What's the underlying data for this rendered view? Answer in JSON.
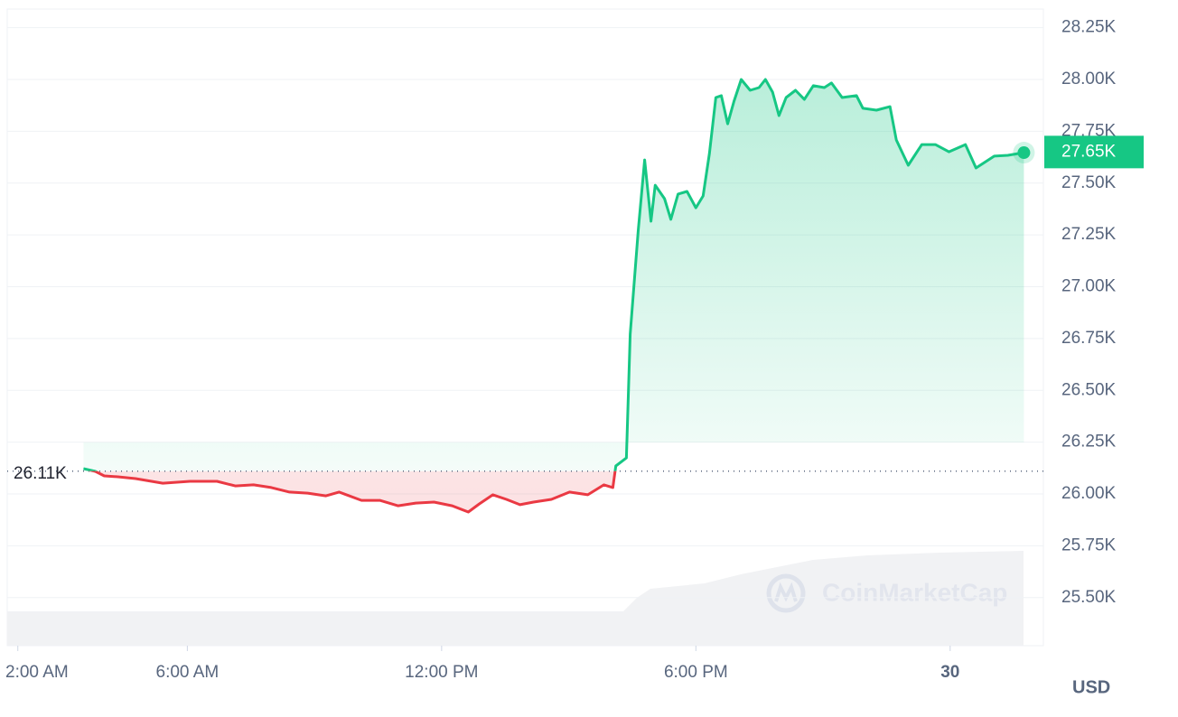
{
  "chart_data": {
    "type": "line",
    "series": [
      {
        "color": "#16c784",
        "down_color": "#ea3943",
        "x": [
          3.55,
          3.83,
          4.04,
          4.36,
          4.78,
          5.42,
          6.06,
          6.7,
          7.13,
          7.56,
          7.98,
          8.41,
          8.84,
          9.27,
          9.58,
          10.11,
          10.54,
          10.97,
          11.39,
          11.82,
          12.25,
          12.63,
          12.89,
          13.21,
          13.53,
          13.85,
          14.17,
          14.59,
          15.02,
          15.45,
          15.83,
          16.04,
          16.11,
          16.36,
          16.45,
          16.64,
          16.79,
          16.94,
          17.04,
          17.26,
          17.41,
          17.58,
          17.79,
          18.0,
          18.17,
          18.32,
          18.47,
          18.6,
          18.75,
          18.9,
          19.07,
          19.28,
          19.49,
          19.64,
          19.81,
          19.96,
          20.13,
          20.35,
          20.56,
          20.77,
          21.03,
          21.2,
          21.45,
          21.79,
          21.94,
          22.26,
          22.58,
          22.73,
          23.01,
          23.33,
          23.65,
          23.97,
          24.36,
          24.61,
          25.04,
          25.36,
          25.74
        ],
        "values": [
          26122,
          26109,
          26087,
          26083,
          26074,
          26052,
          26061,
          26061,
          26039,
          26044,
          26031,
          26009,
          26004,
          25991,
          26009,
          25969,
          25969,
          25943,
          25956,
          25961,
          25943,
          25913,
          25952,
          25996,
          25974,
          25948,
          25961,
          25974,
          26009,
          25996,
          26044,
          26031,
          26135,
          26174,
          26771,
          27272,
          27612,
          27316,
          27490,
          27425,
          27325,
          27447,
          27460,
          27381,
          27438,
          27643,
          27913,
          27922,
          27786,
          27895,
          28000,
          27948,
          27961,
          28000,
          27939,
          27826,
          27913,
          27948,
          27904,
          27970,
          27961,
          27983,
          27913,
          27922,
          27861,
          27852,
          27869,
          27708,
          27586,
          27686,
          27686,
          27651,
          27686,
          27573,
          27630,
          27634,
          27647
        ]
      }
    ],
    "reference": {
      "value": 26110,
      "label": "26.11K"
    },
    "current": {
      "value": 27650,
      "label": "27.65K"
    },
    "xlim": [
      1.75,
      26.2
    ],
    "xticks": [
      {
        "value": 2,
        "label": "2:00 AM"
      },
      {
        "value": 6,
        "label": "6:00 AM"
      },
      {
        "value": 12,
        "label": "12:00 PM"
      },
      {
        "value": 18,
        "label": "6:00 PM"
      },
      {
        "value": 24,
        "label": "30"
      }
    ],
    "ylim": [
      25268,
      28340
    ],
    "yticks": [
      {
        "value": 25500,
        "label": "25.50K"
      },
      {
        "value": 25750,
        "label": "25.75K"
      },
      {
        "value": 26000,
        "label": "26.00K"
      },
      {
        "value": 26250,
        "label": "26.25K"
      },
      {
        "value": 26500,
        "label": "26.50K"
      },
      {
        "value": 26750,
        "label": "26.75K"
      },
      {
        "value": 27000,
        "label": "27.00K"
      },
      {
        "value": 27250,
        "label": "27.25K"
      },
      {
        "value": 27500,
        "label": "27.50K"
      },
      {
        "value": 27750,
        "label": "27.75K"
      },
      {
        "value": 28000,
        "label": "28.00K"
      },
      {
        "value": 28250,
        "label": "28.25K"
      }
    ],
    "grid": true,
    "currency": "USD",
    "watermark": "CoinMarketCap"
  }
}
